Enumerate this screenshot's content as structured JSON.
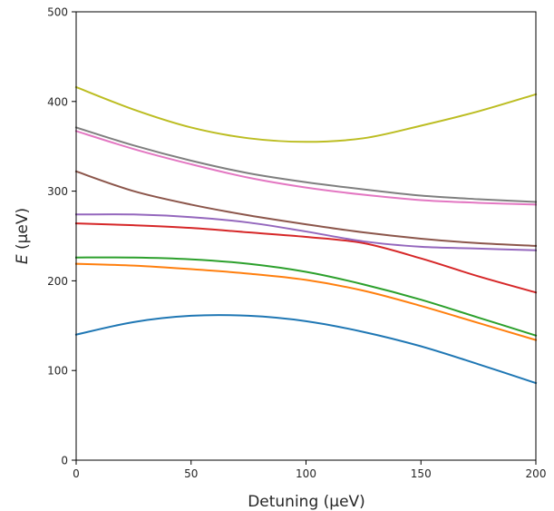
{
  "chart_data": {
    "type": "line",
    "title": "",
    "xlabel": "Detuning (μeV)",
    "ylabel": "E (μeV)",
    "ylabel_parts": {
      "var": "E",
      "unit": " (μeV)"
    },
    "xlim": [
      0,
      200
    ],
    "ylim": [
      0,
      500
    ],
    "xticks": [
      0,
      50,
      100,
      150,
      200
    ],
    "yticks": [
      0,
      100,
      200,
      300,
      400,
      500
    ],
    "grid": false,
    "legend": "none",
    "x": [
      0,
      25,
      50,
      75,
      100,
      125,
      150,
      175,
      200
    ],
    "series": [
      {
        "color": "#1f77b4",
        "values": [
          140,
          154,
          161,
          161,
          155,
          143,
          127,
          107,
          86
        ]
      },
      {
        "color": "#ff7f0e",
        "values": [
          219,
          217,
          213,
          208,
          201,
          189,
          172,
          153,
          134
        ]
      },
      {
        "color": "#2ca02c",
        "values": [
          226,
          226,
          224,
          219,
          210,
          196,
          179,
          159,
          139
        ]
      },
      {
        "color": "#d62728",
        "values": [
          264,
          262,
          259,
          254,
          249,
          242,
          225,
          205,
          187
        ]
      },
      {
        "color": "#9467bd",
        "values": [
          274,
          274,
          271,
          265,
          255,
          244,
          238,
          236,
          234
        ]
      },
      {
        "color": "#8c564b",
        "values": [
          322,
          300,
          285,
          273,
          263,
          254,
          247,
          242,
          239
        ]
      },
      {
        "color": "#e377c2",
        "values": [
          367,
          347,
          330,
          315,
          304,
          296,
          290,
          287,
          285
        ]
      },
      {
        "color": "#7f7f7f",
        "values": [
          371,
          351,
          334,
          320,
          310,
          302,
          295,
          291,
          288
        ]
      },
      {
        "color": "#bcbd22",
        "values": [
          416,
          391,
          371,
          359,
          355,
          359,
          373,
          389,
          408
        ]
      }
    ]
  }
}
